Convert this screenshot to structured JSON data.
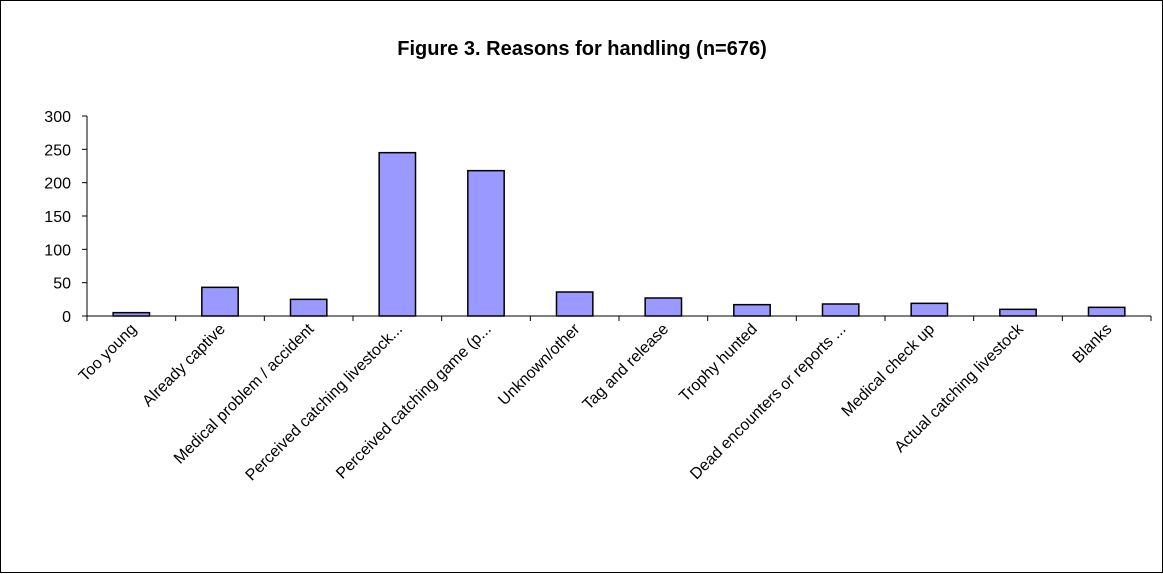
{
  "chart_data": {
    "type": "bar",
    "title": "Figure 3. Reasons for handling (n=676)",
    "xlabel": "",
    "ylabel": "",
    "ylim": [
      0,
      300
    ],
    "yticks": [
      0,
      50,
      100,
      150,
      200,
      250,
      300
    ],
    "grid": false,
    "legend": "none",
    "categories": [
      "Too young",
      "Already captive",
      "Medical problem / accident",
      "Perceived catching livestock...",
      "Perceived catching game (p...",
      "Unknown/other",
      "Tag and release",
      "Trophy hunted",
      "Dead encounters or reports ...",
      "Medical check up",
      "Actual catching livestock",
      "Blanks"
    ],
    "values": [
      5,
      43,
      25,
      245,
      218,
      36,
      27,
      17,
      18,
      19,
      10,
      13
    ],
    "bar_color": "#9999ff",
    "bar_edge_color": "#000000"
  }
}
